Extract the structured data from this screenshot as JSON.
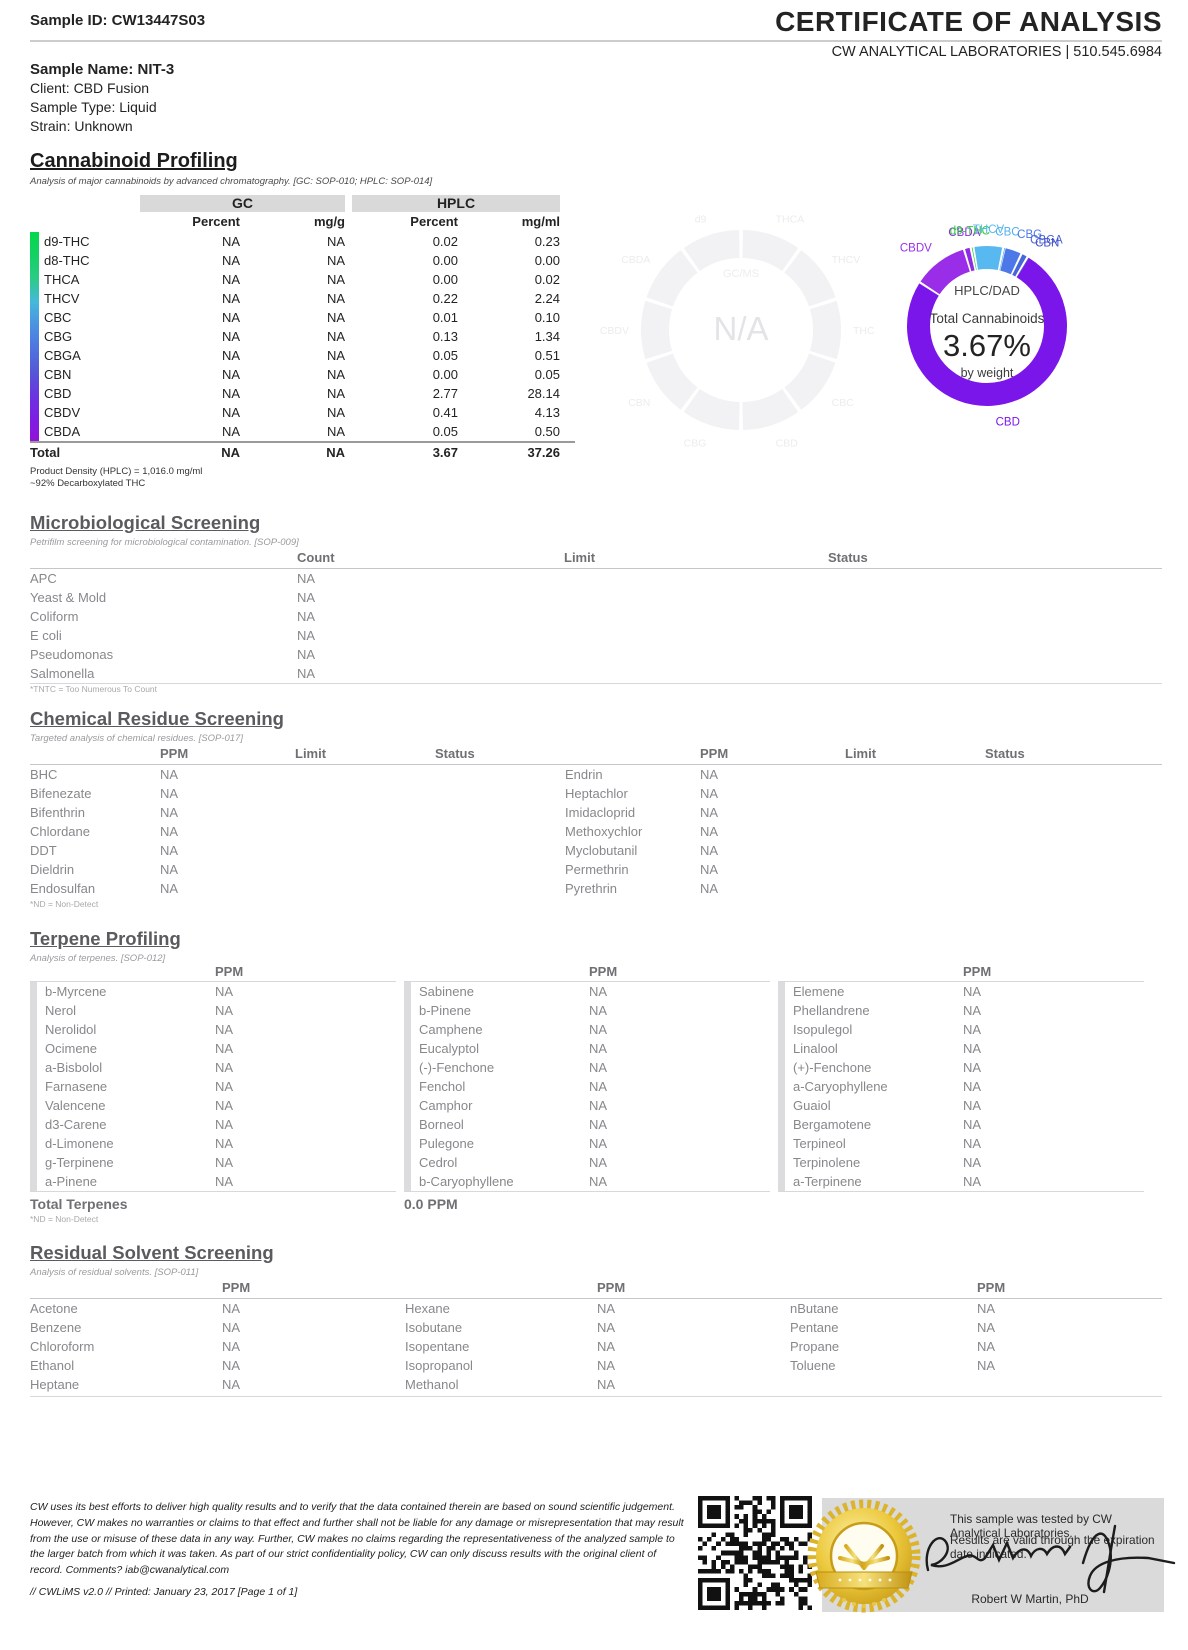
{
  "header": {
    "sample_id": "Sample ID: CW13447S03",
    "title": "CERTIFICATE OF ANALYSIS",
    "lab_line": "CW ANALYTICAL LABORATORIES | 510.545.6984"
  },
  "sample_info": {
    "name": "Sample Name: NIT-3",
    "client": "Client: CBD Fusion",
    "type": "Sample Type: Liquid",
    "strain": "Strain: Unknown"
  },
  "cannabinoid": {
    "title": "Cannabinoid Profiling",
    "subtitle": "Analysis of major cannabinoids by advanced chromatography. [GC: SOP-010; HPLC: SOP-014]",
    "group_headers": [
      "GC",
      "HPLC"
    ],
    "col_headers": [
      "Percent",
      "mg/g",
      "Percent",
      "mg/ml"
    ],
    "rows": [
      {
        "name": "d9-THC",
        "gc_percent": "NA",
        "gc_mgg": "NA",
        "hplc_percent": "0.02",
        "hplc_mgml": "0.23"
      },
      {
        "name": "d8-THC",
        "gc_percent": "NA",
        "gc_mgg": "NA",
        "hplc_percent": "0.00",
        "hplc_mgml": "0.00"
      },
      {
        "name": "THCA",
        "gc_percent": "NA",
        "gc_mgg": "NA",
        "hplc_percent": "0.00",
        "hplc_mgml": "0.02"
      },
      {
        "name": "THCV",
        "gc_percent": "NA",
        "gc_mgg": "NA",
        "hplc_percent": "0.22",
        "hplc_mgml": "2.24"
      },
      {
        "name": "CBC",
        "gc_percent": "NA",
        "gc_mgg": "NA",
        "hplc_percent": "0.01",
        "hplc_mgml": "0.10"
      },
      {
        "name": "CBG",
        "gc_percent": "NA",
        "gc_mgg": "NA",
        "hplc_percent": "0.13",
        "hplc_mgml": "1.34"
      },
      {
        "name": "CBGA",
        "gc_percent": "NA",
        "gc_mgg": "NA",
        "hplc_percent": "0.05",
        "hplc_mgml": "0.51"
      },
      {
        "name": "CBN",
        "gc_percent": "NA",
        "gc_mgg": "NA",
        "hplc_percent": "0.00",
        "hplc_mgml": "0.05"
      },
      {
        "name": "CBD",
        "gc_percent": "NA",
        "gc_mgg": "NA",
        "hplc_percent": "2.77",
        "hplc_mgml": "28.14"
      },
      {
        "name": "CBDV",
        "gc_percent": "NA",
        "gc_mgg": "NA",
        "hplc_percent": "0.41",
        "hplc_mgml": "4.13"
      },
      {
        "name": "CBDA",
        "gc_percent": "NA",
        "gc_mgg": "NA",
        "hplc_percent": "0.05",
        "hplc_mgml": "0.50"
      }
    ],
    "total": {
      "name": "Total",
      "gc_percent": "NA",
      "gc_mgg": "NA",
      "hplc_percent": "3.67",
      "hplc_mgml": "37.26"
    },
    "footnote1": "Product Density (HPLC) = 1,016.0 mg/ml",
    "footnote2": "~92% Decarboxylated THC"
  },
  "chart_data": [
    {
      "type": "pie",
      "style": "donut",
      "title": "HPLC/DAD",
      "center_line1": "HPLC/DAD",
      "center_line2": "Total Cannabinoids",
      "center_value": "3.67%",
      "center_line3": "by weight",
      "units": "percent by weight",
      "start_angle_deg": -57,
      "legend_position": "around",
      "series": [
        {
          "name": "CBDV",
          "value": 0.41,
          "color": "#9a2de8"
        },
        {
          "name": "CBDA",
          "value": 0.05,
          "color": "#8e2be0"
        },
        {
          "name": "d9-THC",
          "value": 0.02,
          "color": "#2ecb3f"
        },
        {
          "name": "THCV",
          "value": 0.22,
          "color": "#58b8f0"
        },
        {
          "name": "CBC",
          "value": 0.01,
          "color": "#4fb0ee"
        },
        {
          "name": "CBG",
          "value": 0.13,
          "color": "#4d78e8"
        },
        {
          "name": "CBGA",
          "value": 0.05,
          "color": "#4a64da"
        },
        {
          "name": "CBN",
          "value": 0.005,
          "color": "#4050c8"
        },
        {
          "name": "CBD",
          "value": 2.77,
          "color": "#7a16ea"
        }
      ]
    },
    {
      "type": "pie",
      "style": "donut-placeholder",
      "title": "GC/MS",
      "center_value": "N/A",
      "segments": 10,
      "labels": [
        "THCA",
        "THCV",
        "THC",
        "CBC",
        "CBD",
        "CBG",
        "CBN",
        "CBDV",
        "CBDA",
        "d9"
      ],
      "color": "#f2f2f4",
      "label_color": "#ececef"
    }
  ],
  "micro": {
    "title": "Microbiological Screening",
    "subtitle": "Petrifilm screening for microbiological contamination. [SOP-009]",
    "headers": [
      "Count",
      "Limit",
      "Status"
    ],
    "rows": [
      {
        "name": "APC",
        "value": "NA"
      },
      {
        "name": "Yeast & Mold",
        "value": "NA"
      },
      {
        "name": "Coliform",
        "value": "NA"
      },
      {
        "name": "E coli",
        "value": "NA"
      },
      {
        "name": "Pseudomonas",
        "value": "NA"
      },
      {
        "name": "Salmonella",
        "value": "NA"
      }
    ],
    "footnote": "*TNTC = Too Numerous To Count"
  },
  "chem": {
    "title": "Chemical Residue Screening",
    "subtitle": "Targeted analysis of chemical residues. [SOP-017]",
    "headers": [
      "PPM",
      "Limit",
      "Status"
    ],
    "left_rows": [
      {
        "name": "BHC",
        "value": "NA"
      },
      {
        "name": "Bifenezate",
        "value": "NA"
      },
      {
        "name": "Bifenthrin",
        "value": "NA"
      },
      {
        "name": "Chlordane",
        "value": "NA"
      },
      {
        "name": "DDT",
        "value": "NA"
      },
      {
        "name": "Dieldrin",
        "value": "NA"
      },
      {
        "name": "Endosulfan",
        "value": "NA"
      }
    ],
    "right_rows": [
      {
        "name": "Endrin",
        "value": "NA"
      },
      {
        "name": "Heptachlor",
        "value": "NA"
      },
      {
        "name": "Imidacloprid",
        "value": "NA"
      },
      {
        "name": "Methoxychlor",
        "value": "NA"
      },
      {
        "name": "Myclobutanil",
        "value": "NA"
      },
      {
        "name": "Permethrin",
        "value": "NA"
      },
      {
        "name": "Pyrethrin",
        "value": "NA"
      }
    ],
    "footnote": "*ND = Non-Detect"
  },
  "terpene": {
    "title": "Terpene Profiling",
    "subtitle": "Analysis of terpenes. [SOP-012]",
    "ppm_header": "PPM",
    "col1": [
      {
        "name": "b-Myrcene",
        "value": "NA"
      },
      {
        "name": "Nerol",
        "value": "NA"
      },
      {
        "name": "Nerolidol",
        "value": "NA"
      },
      {
        "name": "Ocimene",
        "value": "NA"
      },
      {
        "name": "a-Bisbolol",
        "value": "NA"
      },
      {
        "name": "Farnasene",
        "value": "NA"
      },
      {
        "name": "Valencene",
        "value": "NA"
      },
      {
        "name": "d3-Carene",
        "value": "NA"
      },
      {
        "name": "d-Limonene",
        "value": "NA"
      },
      {
        "name": "g-Terpinene",
        "value": "NA"
      },
      {
        "name": "a-Pinene",
        "value": "NA"
      }
    ],
    "col2": [
      {
        "name": "Sabinene",
        "value": "NA"
      },
      {
        "name": "b-Pinene",
        "value": "NA"
      },
      {
        "name": "Camphene",
        "value": "NA"
      },
      {
        "name": "Eucalyptol",
        "value": "NA"
      },
      {
        "name": "(-)-Fenchone",
        "value": "NA"
      },
      {
        "name": "Fenchol",
        "value": "NA"
      },
      {
        "name": "Camphor",
        "value": "NA"
      },
      {
        "name": "Borneol",
        "value": "NA"
      },
      {
        "name": "Pulegone",
        "value": "NA"
      },
      {
        "name": "Cedrol",
        "value": "NA"
      },
      {
        "name": "b-Caryophyllene",
        "value": "NA"
      }
    ],
    "col3": [
      {
        "name": "Elemene",
        "value": "NA"
      },
      {
        "name": "Phellandrene",
        "value": "NA"
      },
      {
        "name": "Isopulegol",
        "value": "NA"
      },
      {
        "name": "Linalool",
        "value": "NA"
      },
      {
        "name": "(+)-Fenchone",
        "value": "NA"
      },
      {
        "name": "a-Caryophyllene",
        "value": "NA"
      },
      {
        "name": "Guaiol",
        "value": "NA"
      },
      {
        "name": "Bergamotene",
        "value": "NA"
      },
      {
        "name": "Terpineol",
        "value": "NA"
      },
      {
        "name": "Terpinolene",
        "value": "NA"
      },
      {
        "name": "a-Terpinene",
        "value": "NA"
      }
    ],
    "total_label": "Total Terpenes",
    "total_value": "0.0 PPM",
    "footnote": "*ND = Non-Detect"
  },
  "solvent": {
    "title": "Residual Solvent Screening",
    "subtitle": "Analysis of residual solvents. [SOP-011]",
    "ppm_header": "PPM",
    "col1": [
      {
        "name": "Acetone",
        "value": "NA"
      },
      {
        "name": "Benzene",
        "value": "NA"
      },
      {
        "name": "Chloroform",
        "value": "NA"
      },
      {
        "name": "Ethanol",
        "value": "NA"
      },
      {
        "name": "Heptane",
        "value": "NA"
      }
    ],
    "col2": [
      {
        "name": "Hexane",
        "value": "NA"
      },
      {
        "name": "Isobutane",
        "value": "NA"
      },
      {
        "name": "Isopentane",
        "value": "NA"
      },
      {
        "name": "Isopropanol",
        "value": "NA"
      },
      {
        "name": "Methanol",
        "value": "NA"
      }
    ],
    "col3": [
      {
        "name": "nButane",
        "value": "NA"
      },
      {
        "name": "Pentane",
        "value": "NA"
      },
      {
        "name": "Propane",
        "value": "NA"
      },
      {
        "name": "Toluene",
        "value": "NA"
      }
    ]
  },
  "footer": {
    "legal": "CW uses its best efforts to deliver high quality results and to verify that the data contained therein are based on sound scientific judgement. However, CW makes no warranties or claims to that effect and further shall not be liable for any damage or misrepresentation that may result from the use or misuse of these data in any way. Further, CW makes no claims regarding the representativeness of the analyzed sample to the larger batch from which it was taken. As part of our strict confidentiality policy, CW can only discuss results with the original client of record. Comments? iab@cwanalytical.com",
    "meta": "// CWLiMS v2.0 // Printed: January 23, 2017 [Page 1 of 1]",
    "box_line1": "This sample was tested by CW Analytical Laboratories.",
    "box_line2": "Results are valid through the expiration date indicated.",
    "signer": "Robert W Martin, PhD"
  }
}
